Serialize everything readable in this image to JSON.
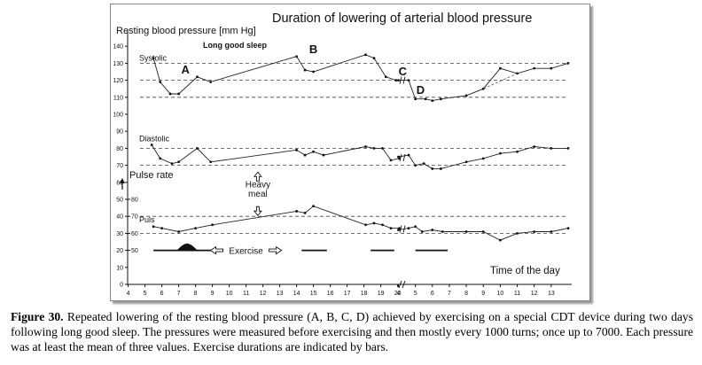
{
  "chart_data": {
    "type": "line",
    "title": "Duration of lowering of arterial blood pressure",
    "ylabel": "Resting blood pressure [mm Hg]",
    "ylabel2": "Pulse rate",
    "xlabel": "Time of the day",
    "note": "Long good sleep",
    "ylim": [
      0,
      145
    ],
    "yticks": [
      0,
      10,
      20,
      30,
      40,
      50,
      60,
      70,
      80,
      90,
      100,
      110,
      120,
      130,
      140
    ],
    "pulse_ticks": [
      {
        "at": 20,
        "label": "50"
      },
      {
        "at": 30,
        "label": "60"
      },
      {
        "at": 40,
        "label": "70"
      },
      {
        "at": 50,
        "label": "80"
      }
    ],
    "x_ticks": {
      "day1": [
        "4",
        "5",
        "6",
        "7",
        "8",
        "9",
        "10",
        "11",
        "12",
        "13",
        "14",
        "15",
        "16",
        "17",
        "18",
        "19",
        "20"
      ],
      "day2": [
        "4",
        "5",
        "6",
        "7",
        "8",
        "9",
        "10",
        "11",
        "12",
        "13"
      ]
    },
    "series": [
      {
        "name": "Systolic",
        "points": [
          {
            "day": 1,
            "t": 5.5,
            "v": 133
          },
          {
            "day": 1,
            "t": 5.9,
            "v": 119
          },
          {
            "day": 1,
            "t": 6.5,
            "v": 112
          },
          {
            "day": 1,
            "t": 7.0,
            "v": 112
          },
          {
            "day": 1,
            "t": 8.1,
            "v": 122
          },
          {
            "day": 1,
            "t": 8.9,
            "v": 119
          },
          {
            "day": 1,
            "t": 14.0,
            "v": 134
          },
          {
            "day": 1,
            "t": 14.5,
            "v": 126
          },
          {
            "day": 1,
            "t": 15.0,
            "v": 125
          },
          {
            "day": 1,
            "t": 18.1,
            "v": 135
          },
          {
            "day": 1,
            "t": 18.6,
            "v": 133
          },
          {
            "day": 1,
            "t": 19.3,
            "v": 122
          },
          {
            "day": 1,
            "t": 19.9,
            "v": 120
          },
          {
            "day": 2,
            "t": 4.0,
            "v": 120
          },
          {
            "day": 2,
            "t": 4.6,
            "v": 120
          },
          {
            "day": 2,
            "t": 5.0,
            "v": 109
          },
          {
            "day": 2,
            "t": 5.6,
            "v": 109
          },
          {
            "day": 2,
            "t": 6.0,
            "v": 108
          },
          {
            "day": 2,
            "t": 6.5,
            "v": 109
          },
          {
            "day": 2,
            "t": 8.0,
            "v": 111
          },
          {
            "day": 2,
            "t": 9.0,
            "v": 115
          },
          {
            "day": 2,
            "t": 10.0,
            "v": 127
          },
          {
            "day": 2,
            "t": 11.0,
            "v": 124
          },
          {
            "day": 2,
            "t": 12.0,
            "v": 127
          },
          {
            "day": 2,
            "t": 13.0,
            "v": 127
          },
          {
            "day": 2,
            "t": 14.0,
            "v": 130
          }
        ]
      },
      {
        "name": "Diastolic",
        "points": [
          {
            "day": 1,
            "t": 5.4,
            "v": 82
          },
          {
            "day": 1,
            "t": 5.9,
            "v": 74
          },
          {
            "day": 1,
            "t": 6.6,
            "v": 71
          },
          {
            "day": 1,
            "t": 7.0,
            "v": 72
          },
          {
            "day": 1,
            "t": 8.1,
            "v": 80
          },
          {
            "day": 1,
            "t": 8.9,
            "v": 72
          },
          {
            "day": 1,
            "t": 14.0,
            "v": 79
          },
          {
            "day": 1,
            "t": 14.5,
            "v": 76
          },
          {
            "day": 1,
            "t": 15.0,
            "v": 78
          },
          {
            "day": 1,
            "t": 15.6,
            "v": 76
          },
          {
            "day": 1,
            "t": 18.1,
            "v": 81
          },
          {
            "day": 1,
            "t": 18.6,
            "v": 80
          },
          {
            "day": 1,
            "t": 19.1,
            "v": 80
          },
          {
            "day": 1,
            "t": 19.6,
            "v": 73
          },
          {
            "day": 1,
            "t": 20.1,
            "v": 74
          },
          {
            "day": 2,
            "t": 4.0,
            "v": 75
          },
          {
            "day": 2,
            "t": 4.6,
            "v": 76
          },
          {
            "day": 2,
            "t": 5.0,
            "v": 70
          },
          {
            "day": 2,
            "t": 5.5,
            "v": 71
          },
          {
            "day": 2,
            "t": 6.0,
            "v": 68
          },
          {
            "day": 2,
            "t": 6.5,
            "v": 68
          },
          {
            "day": 2,
            "t": 8.0,
            "v": 72
          },
          {
            "day": 2,
            "t": 9.0,
            "v": 74
          },
          {
            "day": 2,
            "t": 10.0,
            "v": 77
          },
          {
            "day": 2,
            "t": 11.0,
            "v": 78
          },
          {
            "day": 2,
            "t": 12.0,
            "v": 81
          },
          {
            "day": 2,
            "t": 13.0,
            "v": 80
          },
          {
            "day": 2,
            "t": 14.0,
            "v": 80
          }
        ]
      },
      {
        "name": "Puls",
        "points": [
          {
            "day": 1,
            "t": 5.5,
            "v": 34
          },
          {
            "day": 1,
            "t": 6.0,
            "v": 33
          },
          {
            "day": 1,
            "t": 7.0,
            "v": 31
          },
          {
            "day": 1,
            "t": 8.0,
            "v": 33
          },
          {
            "day": 1,
            "t": 9.0,
            "v": 35
          },
          {
            "day": 1,
            "t": 14.0,
            "v": 43
          },
          {
            "day": 1,
            "t": 14.5,
            "v": 42
          },
          {
            "day": 1,
            "t": 15.0,
            "v": 46
          },
          {
            "day": 1,
            "t": 18.1,
            "v": 35
          },
          {
            "day": 1,
            "t": 18.6,
            "v": 36
          },
          {
            "day": 1,
            "t": 19.1,
            "v": 35
          },
          {
            "day": 1,
            "t": 19.6,
            "v": 33
          },
          {
            "day": 1,
            "t": 20.1,
            "v": 33
          },
          {
            "day": 2,
            "t": 4.0,
            "v": 32
          },
          {
            "day": 2,
            "t": 4.6,
            "v": 33
          },
          {
            "day": 2,
            "t": 5.0,
            "v": 34
          },
          {
            "day": 2,
            "t": 5.4,
            "v": 31
          },
          {
            "day": 2,
            "t": 6.0,
            "v": 32
          },
          {
            "day": 2,
            "t": 6.6,
            "v": 31
          },
          {
            "day": 2,
            "t": 8.0,
            "v": 31
          },
          {
            "day": 2,
            "t": 9.0,
            "v": 31
          },
          {
            "day": 2,
            "t": 10.0,
            "v": 26
          },
          {
            "day": 2,
            "t": 11.0,
            "v": 30
          },
          {
            "day": 2,
            "t": 12.0,
            "v": 31
          },
          {
            "day": 2,
            "t": 13.0,
            "v": 31
          },
          {
            "day": 2,
            "t": 14.0,
            "v": 33
          }
        ]
      }
    ],
    "dashed_levels": [
      130,
      120,
      110,
      80,
      70,
      40,
      30
    ],
    "exercise_bars": [
      {
        "day": 1,
        "start": 5.5,
        "end": 8.9
      },
      {
        "day": 1,
        "start": 14.3,
        "end": 15.8
      },
      {
        "day": 1,
        "start": 18.4,
        "end": 19.8
      },
      {
        "day": 2,
        "start": 5.0,
        "end": 6.9
      }
    ],
    "exercise_hump": {
      "day": 1,
      "center": 7.5,
      "half_width": 0.6,
      "height": 4
    },
    "event_labels": [
      {
        "text": "A",
        "day": 1,
        "t": 7.4,
        "v": 124
      },
      {
        "text": "B",
        "day": 1,
        "t": 15.0,
        "v": 136
      },
      {
        "text": "C",
        "day": 1,
        "t": 20.3,
        "v": 123
      },
      {
        "text": "D",
        "day": 2,
        "t": 5.3,
        "v": 112
      }
    ],
    "annotations": {
      "heavy_meal_1": "Heavy",
      "heavy_meal_2": "meal",
      "exercise": "Exercise",
      "systolic": "Systolic",
      "diastolic": "Diastolic",
      "puls": "Puls"
    },
    "heavy_meal_at": {
      "day": 1,
      "t": 11.7
    },
    "exercise_label_at": {
      "day": 1,
      "t": 11.0
    }
  },
  "caption": {
    "label": "Figure 30.",
    "text": " Repeated lowering of the resting blood pressure (A, B, C, D) achieved by exercising on a special CDT device during two days following long good sleep. The pressures were measured before exercising and then mostly every 1000 turns; once up to 7000. Each pressure was at least the mean of three values. Exercise durations are indicated by bars."
  }
}
